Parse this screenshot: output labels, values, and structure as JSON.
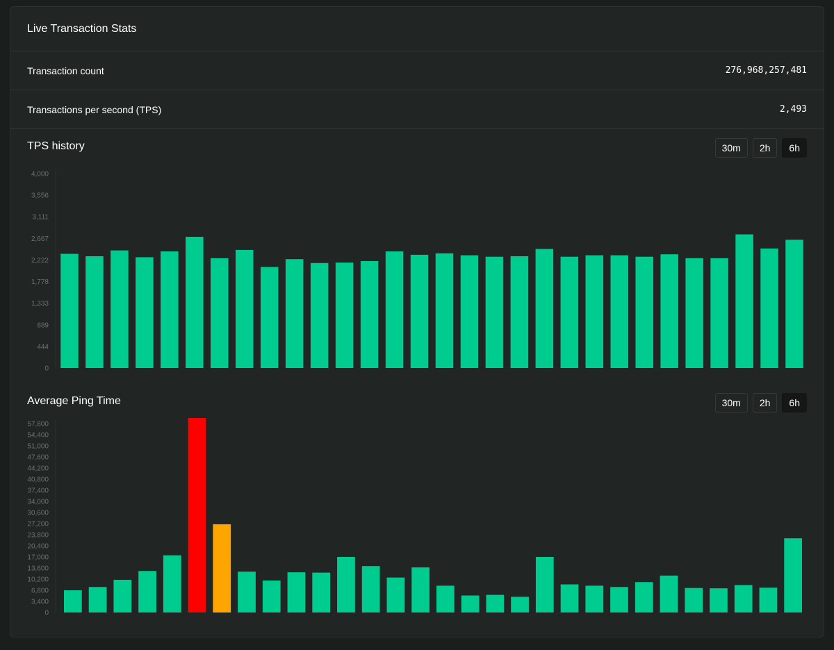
{
  "card": {
    "title": "Live Transaction Stats"
  },
  "stats": [
    {
      "label": "Transaction count",
      "value": "276,968,257,481"
    },
    {
      "label": "Transactions per second (TPS)",
      "value": "2,493"
    }
  ],
  "tps_section": {
    "title": "TPS history",
    "ranges": [
      "30m",
      "2h",
      "6h"
    ],
    "active_range": "6h"
  },
  "ping_section": {
    "title": "Average Ping Time",
    "ranges": [
      "30m",
      "2h",
      "6h"
    ],
    "active_range": "6h"
  },
  "colors": {
    "bar_default": "#00cc8f",
    "bar_high": "#ff0000",
    "bar_warning": "#ffa500",
    "axis_text": "#6c7170"
  },
  "chart_data": [
    {
      "type": "bar",
      "ylim": [
        0,
        4000
      ],
      "yticks": [
        "0",
        "444",
        "889",
        "1,333",
        "1,778",
        "2,222",
        "2,667",
        "3,111",
        "3,556",
        "4,000"
      ],
      "values": [
        2350,
        2300,
        2420,
        2280,
        2400,
        2700,
        2260,
        2430,
        2080,
        2240,
        2160,
        2170,
        2200,
        2400,
        2330,
        2360,
        2320,
        2290,
        2300,
        2450,
        2290,
        2320,
        2320,
        2290,
        2340,
        2260,
        2260,
        2750,
        2460,
        2640
      ]
    },
    {
      "type": "bar",
      "ylim": [
        0,
        57800
      ],
      "yticks": [
        "0",
        "3,400",
        "6,800",
        "10,200",
        "13,600",
        "17,000",
        "20,400",
        "23,800",
        "27,200",
        "30,600",
        "34,000",
        "37,400",
        "40,800",
        "44,200",
        "47,600",
        "51,000",
        "54,400",
        "57,800"
      ],
      "values": [
        6800,
        7800,
        10000,
        12700,
        17500,
        59500,
        27000,
        12500,
        9800,
        12300,
        12200,
        17000,
        14200,
        10700,
        13800,
        8200,
        5200,
        5400,
        4800,
        17000,
        8600,
        8200,
        7800,
        9300,
        11300,
        7500,
        7400,
        8400,
        7600,
        22700
      ],
      "bar_colors": [
        "default",
        "default",
        "default",
        "default",
        "default",
        "high",
        "warning",
        "default",
        "default",
        "default",
        "default",
        "default",
        "default",
        "default",
        "default",
        "default",
        "default",
        "default",
        "default",
        "default",
        "default",
        "default",
        "default",
        "default",
        "default",
        "default",
        "default",
        "default",
        "default",
        "default"
      ]
    }
  ]
}
